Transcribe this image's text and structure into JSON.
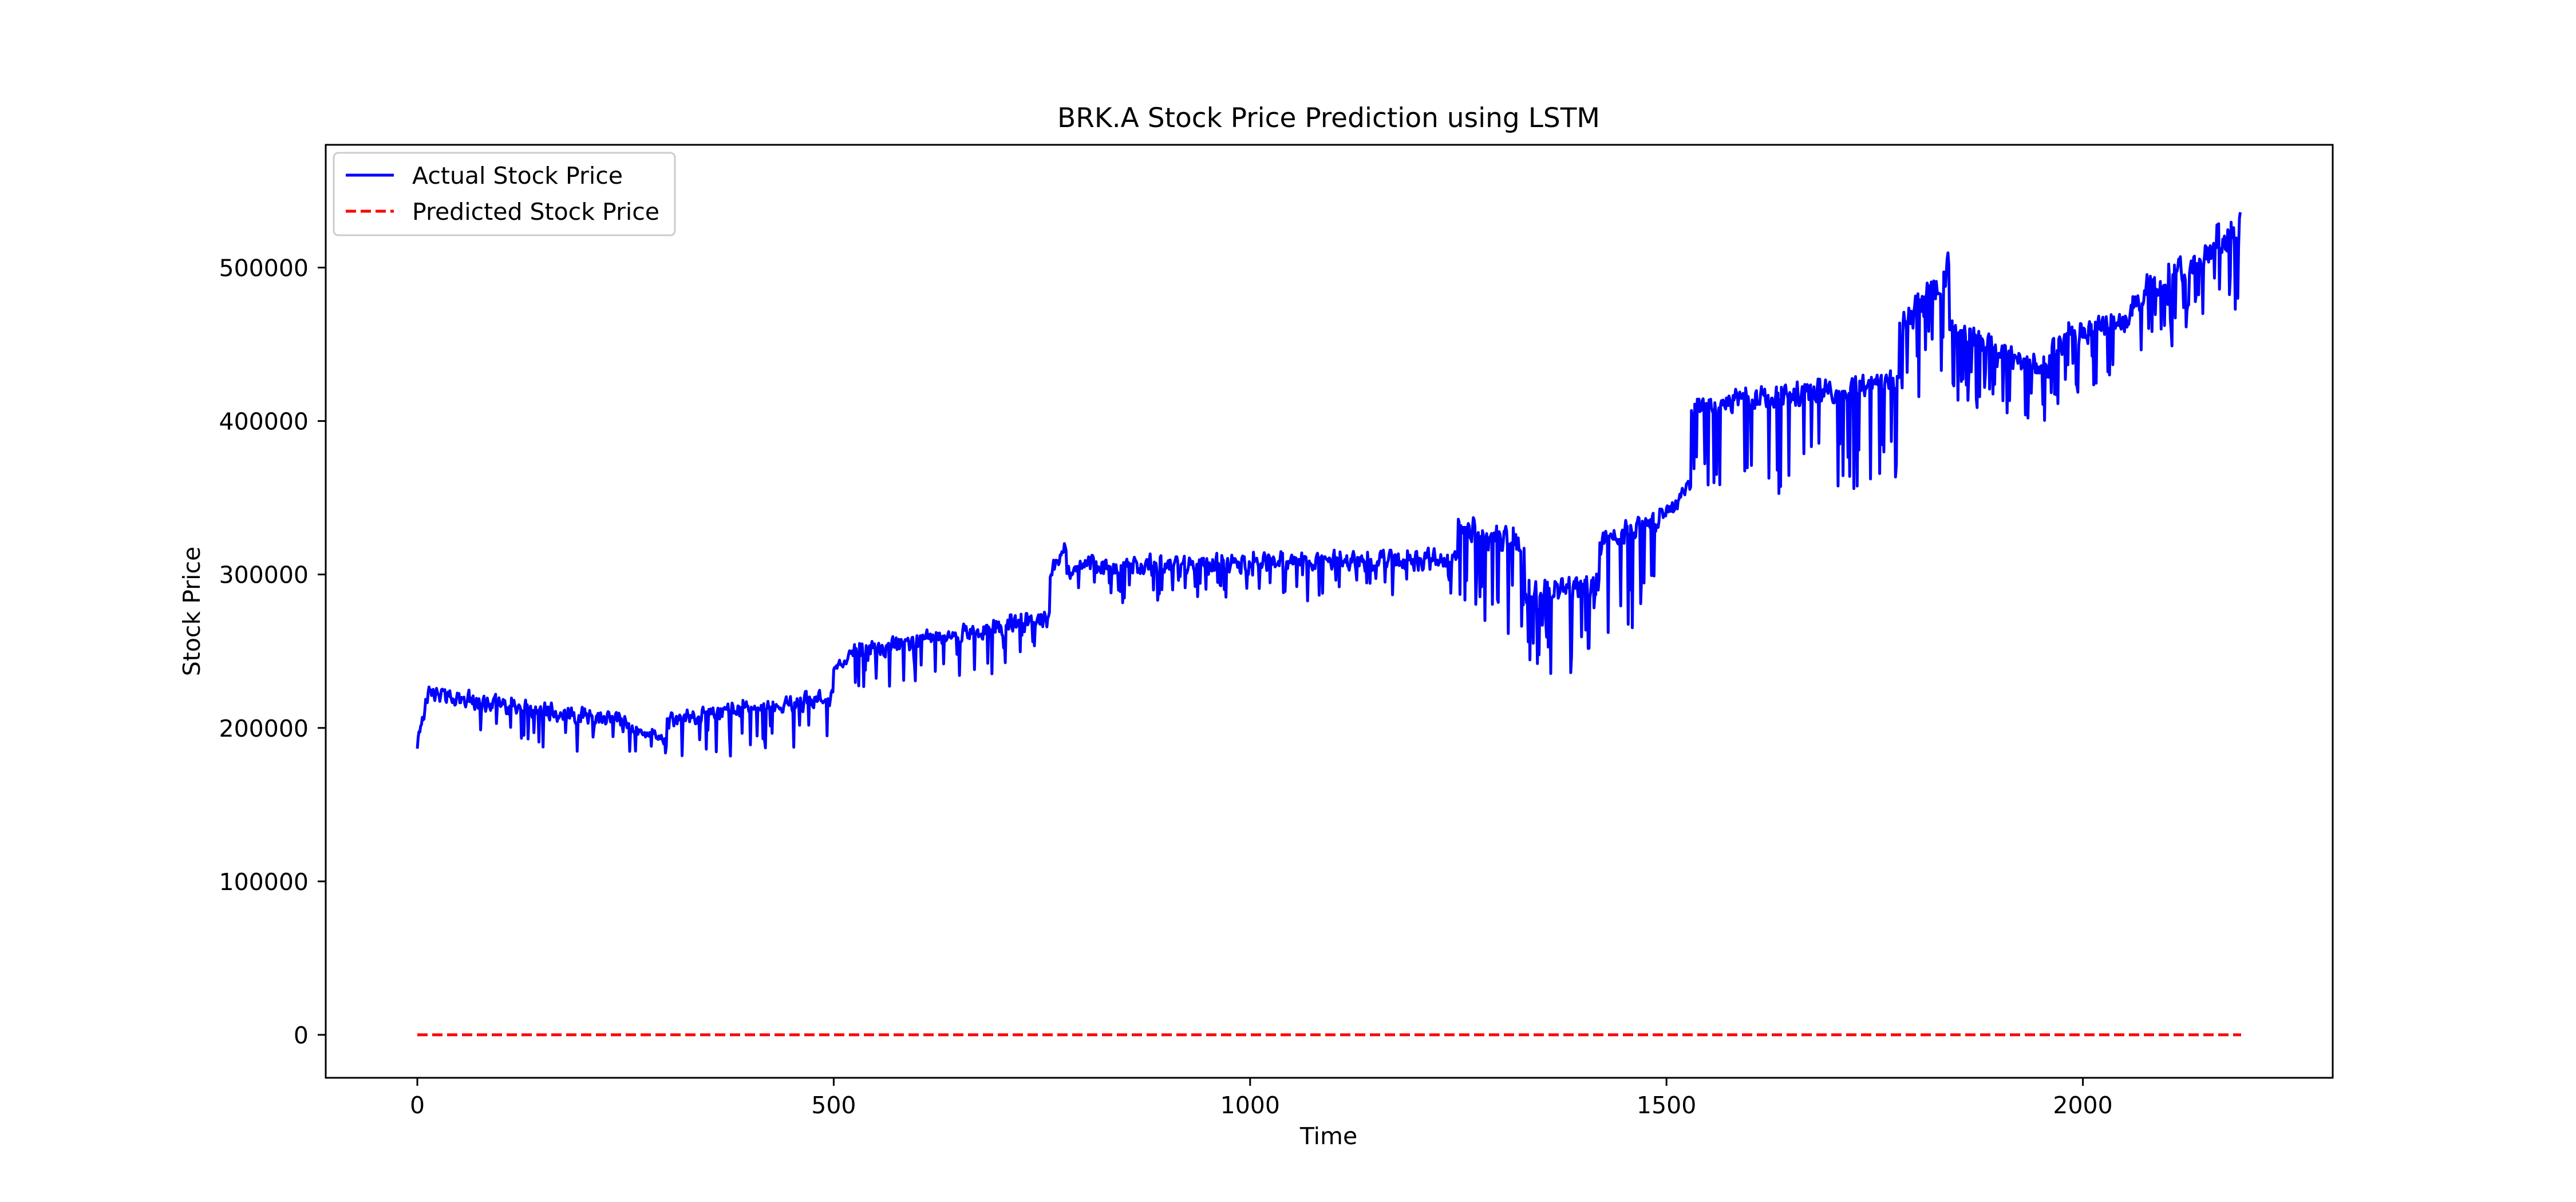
{
  "chart_data": {
    "type": "line",
    "title": "BRK.A Stock Price Prediction using LSTM",
    "xlabel": "Time",
    "ylabel": "Stock Price",
    "xlim": [
      -110,
      2300
    ],
    "ylim": [
      -28000,
      580000
    ],
    "grid": false,
    "legend_position": "top-left",
    "x_ticks": [
      0,
      500,
      1000,
      1500,
      2000
    ],
    "y_ticks": [
      0,
      100000,
      200000,
      300000,
      400000,
      500000
    ],
    "series": [
      {
        "name": "Actual Stock Price",
        "color": "#0000ff",
        "style": "solid",
        "x_start": 0,
        "x_step": 1,
        "length": 2190,
        "segments": [
          {
            "x_end": 15,
            "from": 190000,
            "to": 228000,
            "noise": 8000,
            "dip_every": 0,
            "dip_depth": 0
          },
          {
            "x_end": 250,
            "from": 222000,
            "to": 203000,
            "noise": 9000,
            "dip_every": 12,
            "dip_depth": 22000
          },
          {
            "x_end": 300,
            "from": 200000,
            "to": 192000,
            "noise": 7000,
            "dip_every": 14,
            "dip_depth": 15000
          },
          {
            "x_end": 500,
            "from": 205000,
            "to": 220000,
            "noise": 9000,
            "dip_every": 13,
            "dip_depth": 25000
          },
          {
            "x_end": 520,
            "from": 238000,
            "to": 248000,
            "noise": 6000,
            "dip_every": 0,
            "dip_depth": 0
          },
          {
            "x_end": 760,
            "from": 248000,
            "to": 272000,
            "noise": 10000,
            "dip_every": 12,
            "dip_depth": 26000
          },
          {
            "x_end": 780,
            "from": 300000,
            "to": 320000,
            "noise": 8000,
            "dip_every": 0,
            "dip_depth": 0
          },
          {
            "x_end": 1250,
            "from": 305000,
            "to": 310000,
            "noise": 11000,
            "dip_every": 11,
            "dip_depth": 22000
          },
          {
            "x_end": 1330,
            "from": 330000,
            "to": 320000,
            "noise": 14000,
            "dip_every": 5,
            "dip_depth": 55000
          },
          {
            "x_end": 1420,
            "from": 290000,
            "to": 290000,
            "noise": 20000,
            "dip_every": 5,
            "dip_depth": 45000
          },
          {
            "x_end": 1505,
            "from": 320000,
            "to": 340000,
            "noise": 12000,
            "dip_every": 7,
            "dip_depth": 60000
          },
          {
            "x_end": 1530,
            "from": 340000,
            "to": 360000,
            "noise": 8000,
            "dip_every": 0,
            "dip_depth": 0
          },
          {
            "x_end": 1780,
            "from": 410000,
            "to": 425000,
            "noise": 12000,
            "dip_every": 10,
            "dip_depth": 65000
          },
          {
            "x_end": 1840,
            "from": 460000,
            "to": 500000,
            "noise": 18000,
            "dip_every": 6,
            "dip_depth": 55000
          },
          {
            "x_end": 1960,
            "from": 460000,
            "to": 430000,
            "noise": 16000,
            "dip_every": 6,
            "dip_depth": 40000
          },
          {
            "x_end": 2060,
            "from": 450000,
            "to": 470000,
            "noise": 14000,
            "dip_every": 6,
            "dip_depth": 40000
          },
          {
            "x_end": 2160,
            "from": 480000,
            "to": 510000,
            "noise": 16000,
            "dip_every": 5,
            "dip_depth": 35000
          },
          {
            "x_end": 2190,
            "from": 520000,
            "to": 525000,
            "noise": 25000,
            "dip_every": 3,
            "dip_depth": 55000
          }
        ]
      },
      {
        "name": "Predicted Stock Price",
        "color": "#ff0000",
        "style": "dashed",
        "x": [
          0,
          2190
        ],
        "values": [
          0,
          0
        ]
      }
    ]
  }
}
